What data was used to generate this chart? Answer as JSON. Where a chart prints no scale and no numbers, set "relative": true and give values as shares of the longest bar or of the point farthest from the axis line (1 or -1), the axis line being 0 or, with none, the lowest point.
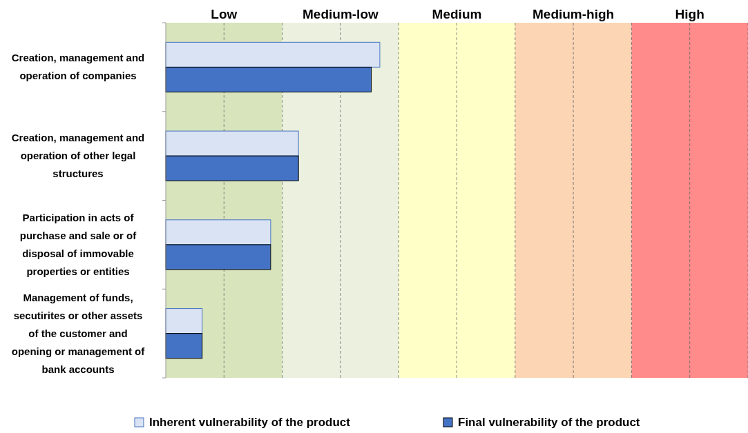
{
  "chart_data": {
    "type": "bar",
    "orientation": "horizontal",
    "relative": true,
    "categories": [
      "Creation, management and operation of companies",
      "Creation, management and operation of other legal structures",
      "Participation in acts of purchase and sale or of disposal of immovable properties or entities",
      "Management of funds, secutirites or other assets of the customer and opening or management of bank accounts"
    ],
    "series": [
      {
        "name": "Inherent vulnerability of the product",
        "color": "#dae3f3",
        "values": [
          1,
          0.62,
          0.49,
          0.17
        ]
      },
      {
        "name": "Final vulnerability of the product",
        "color": "#4472c4",
        "values": [
          0.96,
          0.62,
          0.49,
          0.17
        ]
      }
    ],
    "bands": [
      {
        "axis": "x",
        "from": 0,
        "to": 0.544,
        "label": "Low",
        "color": "#d8e4bc"
      },
      {
        "axis": "x",
        "from": 0.544,
        "to": 1.088,
        "label": "Medium-low",
        "color": "#ebf1de"
      },
      {
        "axis": "x",
        "from": 1.088,
        "to": 1.632,
        "label": "Medium",
        "color": "#ffffc8"
      },
      {
        "axis": "x",
        "from": 1.632,
        "to": 2.176,
        "label": "Medium-high",
        "color": "#fcd5b4"
      },
      {
        "axis": "x",
        "from": 2.176,
        "to": 2.72,
        "label": "High",
        "color": "#ff8b8b"
      }
    ],
    "grid": true,
    "legend": "bottom"
  }
}
